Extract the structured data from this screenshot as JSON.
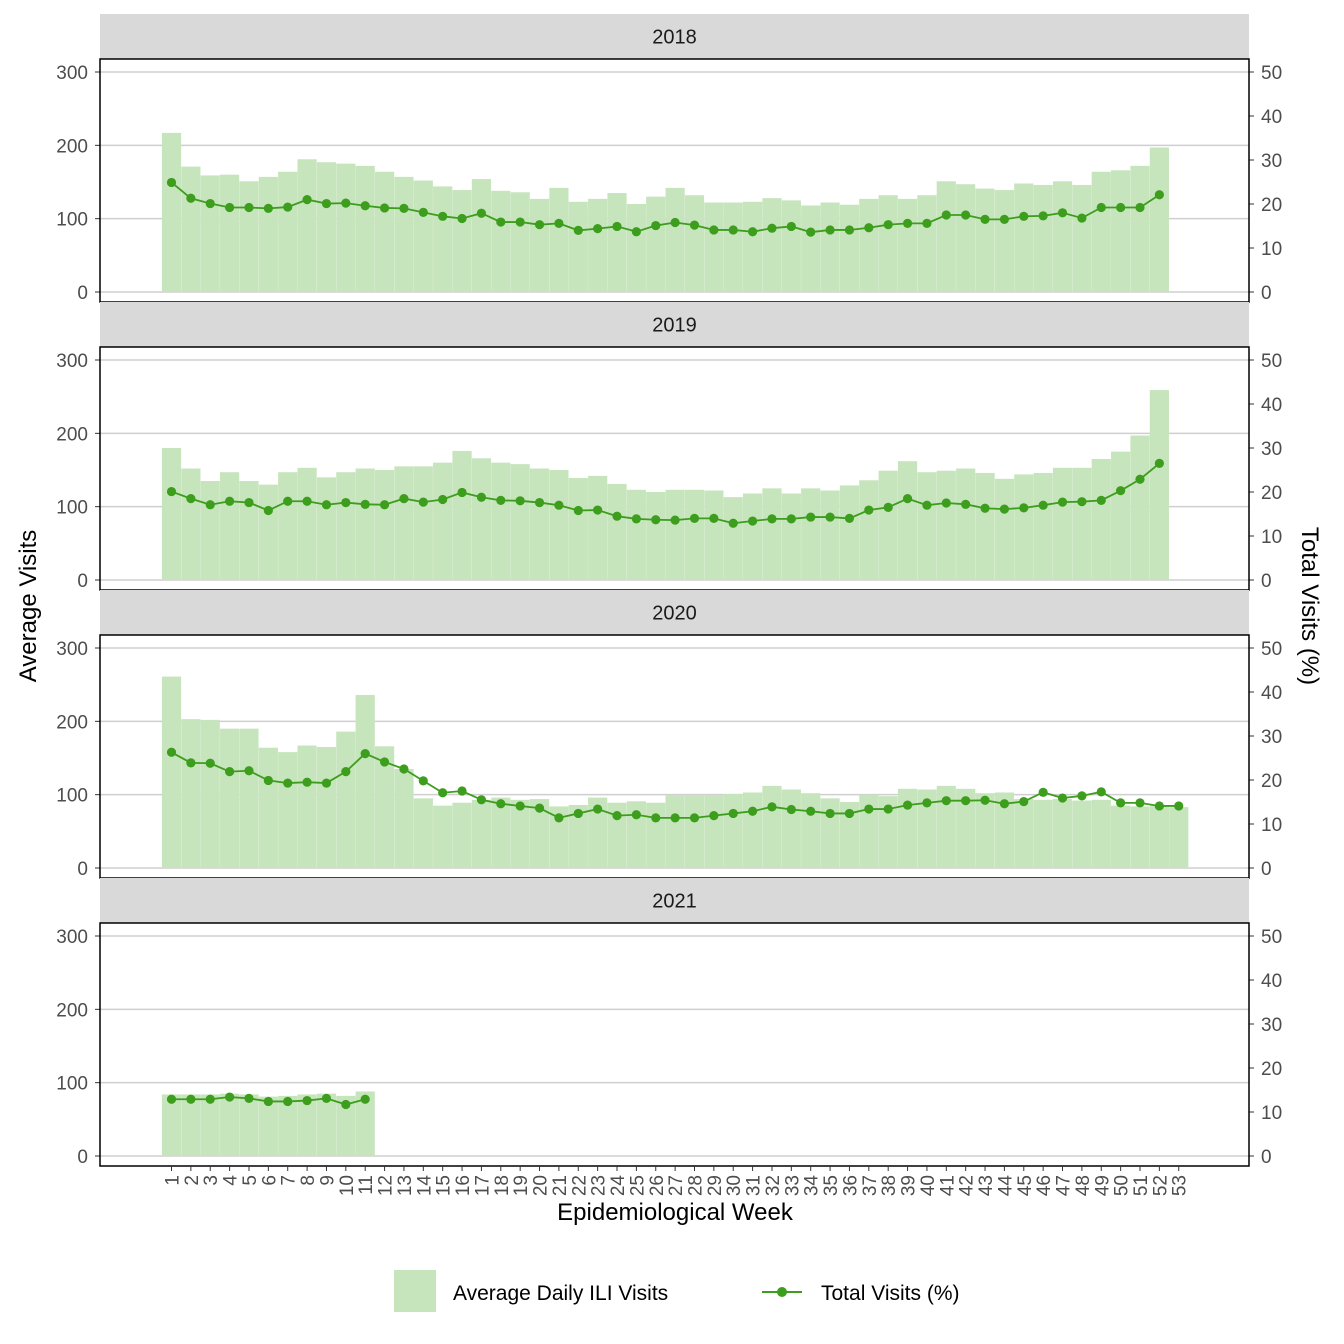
{
  "colors": {
    "bar": "#c7e5bd",
    "line": "#3c9e1c",
    "strip": "#d9d9d9",
    "grid": "#cfcfcf"
  },
  "chart_data": {
    "type": "bar",
    "xlabel": "Epidemiological Week",
    "ylabel": "Average Visits",
    "y2label": "Total Visits (%)",
    "ylim": [
      0,
      300
    ],
    "y2lim": [
      0,
      50
    ],
    "y_ticks": [
      0,
      100,
      200,
      300
    ],
    "y2_ticks": [
      0,
      10,
      20,
      30,
      40,
      50
    ],
    "weeks": [
      1,
      2,
      3,
      4,
      5,
      6,
      7,
      8,
      9,
      10,
      11,
      12,
      13,
      14,
      15,
      16,
      17,
      18,
      19,
      20,
      21,
      22,
      23,
      24,
      25,
      26,
      27,
      28,
      29,
      30,
      31,
      32,
      33,
      34,
      35,
      36,
      37,
      38,
      39,
      40,
      41,
      42,
      43,
      44,
      45,
      46,
      47,
      48,
      49,
      50,
      51,
      52,
      53
    ],
    "legend": {
      "bars": "Average Daily ILI Visits",
      "line": "Total Visits (%)",
      "position": "bottom"
    },
    "panels": [
      {
        "year": "2018",
        "avg_visits": [
          217,
          171,
          159,
          160,
          151,
          157,
          164,
          181,
          177,
          175,
          172,
          164,
          157,
          152,
          144,
          139,
          154,
          138,
          136,
          127,
          142,
          123,
          127,
          135,
          120,
          130,
          142,
          132,
          122,
          122,
          123,
          128,
          125,
          118,
          122,
          119,
          127,
          132,
          127,
          132,
          151,
          147,
          141,
          139,
          148,
          146,
          151,
          146,
          164,
          166,
          172,
          197
        ],
        "total_pct": [
          24.9,
          21.3,
          20.1,
          19.2,
          19.2,
          19.0,
          19.3,
          21.0,
          20.1,
          20.2,
          19.6,
          19.1,
          19.0,
          18.1,
          17.2,
          16.7,
          17.9,
          15.9,
          15.9,
          15.3,
          15.6,
          14.0,
          14.4,
          14.9,
          13.7,
          15.1,
          15.8,
          15.2,
          14.1,
          14.1,
          13.7,
          14.5,
          14.9,
          13.6,
          14.1,
          14.1,
          14.6,
          15.3,
          15.6,
          15.6,
          17.5,
          17.5,
          16.5,
          16.5,
          17.2,
          17.3,
          18.0,
          16.8,
          19.2,
          19.2,
          19.2,
          22.1
        ]
      },
      {
        "year": "2019",
        "avg_visits": [
          180,
          152,
          135,
          147,
          135,
          130,
          147,
          153,
          140,
          147,
          152,
          150,
          155,
          155,
          160,
          176,
          166,
          160,
          158,
          152,
          150,
          139,
          142,
          131,
          123,
          120,
          123,
          123,
          122,
          113,
          118,
          125,
          118,
          125,
          122,
          129,
          136,
          149,
          162,
          147,
          149,
          152,
          146,
          138,
          144,
          146,
          153,
          153,
          165,
          175,
          197,
          259
        ],
        "total_pct": [
          20.1,
          18.5,
          17.1,
          17.9,
          17.6,
          15.8,
          17.9,
          17.9,
          17.1,
          17.6,
          17.2,
          17.1,
          18.5,
          17.7,
          18.3,
          19.9,
          18.8,
          18.1,
          18.0,
          17.6,
          17.0,
          15.8,
          15.9,
          14.5,
          13.9,
          13.7,
          13.6,
          14.0,
          14.0,
          12.9,
          13.4,
          13.9,
          13.9,
          14.3,
          14.3,
          14.0,
          15.9,
          16.5,
          18.5,
          17.0,
          17.5,
          17.2,
          16.3,
          16.1,
          16.4,
          17.0,
          17.7,
          17.8,
          18.1,
          20.3,
          22.9,
          26.5
        ]
      },
      {
        "year": "2020",
        "avg_visits": [
          261,
          203,
          202,
          190,
          190,
          164,
          158,
          167,
          165,
          186,
          236,
          166,
          135,
          95,
          85,
          89,
          93,
          96,
          93,
          94,
          84,
          86,
          96,
          89,
          91,
          89,
          99,
          99,
          99,
          101,
          103,
          112,
          107,
          102,
          95,
          90,
          100,
          98,
          108,
          107,
          112,
          108,
          102,
          103,
          94,
          93,
          94,
          92,
          93,
          85,
          84,
          85,
          83
        ],
        "total_pct": [
          26.3,
          23.9,
          23.8,
          21.9,
          22.1,
          19.9,
          19.3,
          19.5,
          19.3,
          21.9,
          26.0,
          24.1,
          22.5,
          19.8,
          17.1,
          17.5,
          15.5,
          14.6,
          14.1,
          13.6,
          11.4,
          12.4,
          13.4,
          11.9,
          12.1,
          11.4,
          11.4,
          11.4,
          11.9,
          12.4,
          12.9,
          13.9,
          13.3,
          12.9,
          12.4,
          12.4,
          13.4,
          13.4,
          14.3,
          14.8,
          15.3,
          15.3,
          15.4,
          14.6,
          15.1,
          17.2,
          15.9,
          16.4,
          17.3,
          14.8,
          14.8,
          14.1,
          14.1
        ]
      },
      {
        "year": "2021",
        "avg_visits": [
          84,
          84,
          84,
          85,
          84,
          81,
          82,
          84,
          85,
          82,
          88
        ],
        "total_pct": [
          12.9,
          12.9,
          12.9,
          13.4,
          13.1,
          12.4,
          12.4,
          12.6,
          13.1,
          11.7,
          12.9
        ]
      }
    ]
  }
}
